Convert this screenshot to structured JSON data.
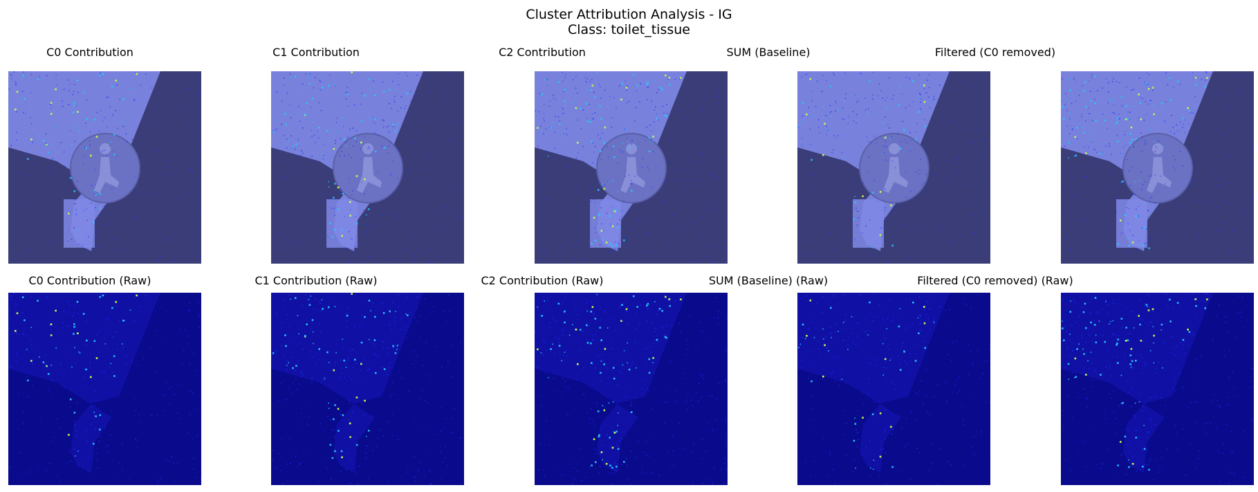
{
  "figure": {
    "title_line1": "Cluster Attribution Analysis - IG",
    "title_line2": "Class: toilet_tissue"
  },
  "panels_top": [
    {
      "title": "C0 Contribution"
    },
    {
      "title": "C1 Contribution"
    },
    {
      "title": "C2 Contribution"
    },
    {
      "title": "SUM (Baseline)"
    },
    {
      "title": "Filtered (C0 removed)"
    }
  ],
  "panels_bottom": [
    {
      "title": "C0 Contribution (Raw)"
    },
    {
      "title": "C1 Contribution (Raw)"
    },
    {
      "title": "C2 Contribution (Raw)"
    },
    {
      "title": "SUM (Baseline) (Raw)"
    },
    {
      "title": "Filtered (C0 removed) (Raw)"
    }
  ],
  "colors": {
    "background_overlay": "#3a3d78",
    "tissue_overlay": "#8088e6",
    "sign_overlay": "#6b72c4",
    "raw_background": "#0a0a8c",
    "hot_low": "#1e2cff",
    "hot_mid": "#27c6ff",
    "hot_high": "#c8ff4a"
  }
}
